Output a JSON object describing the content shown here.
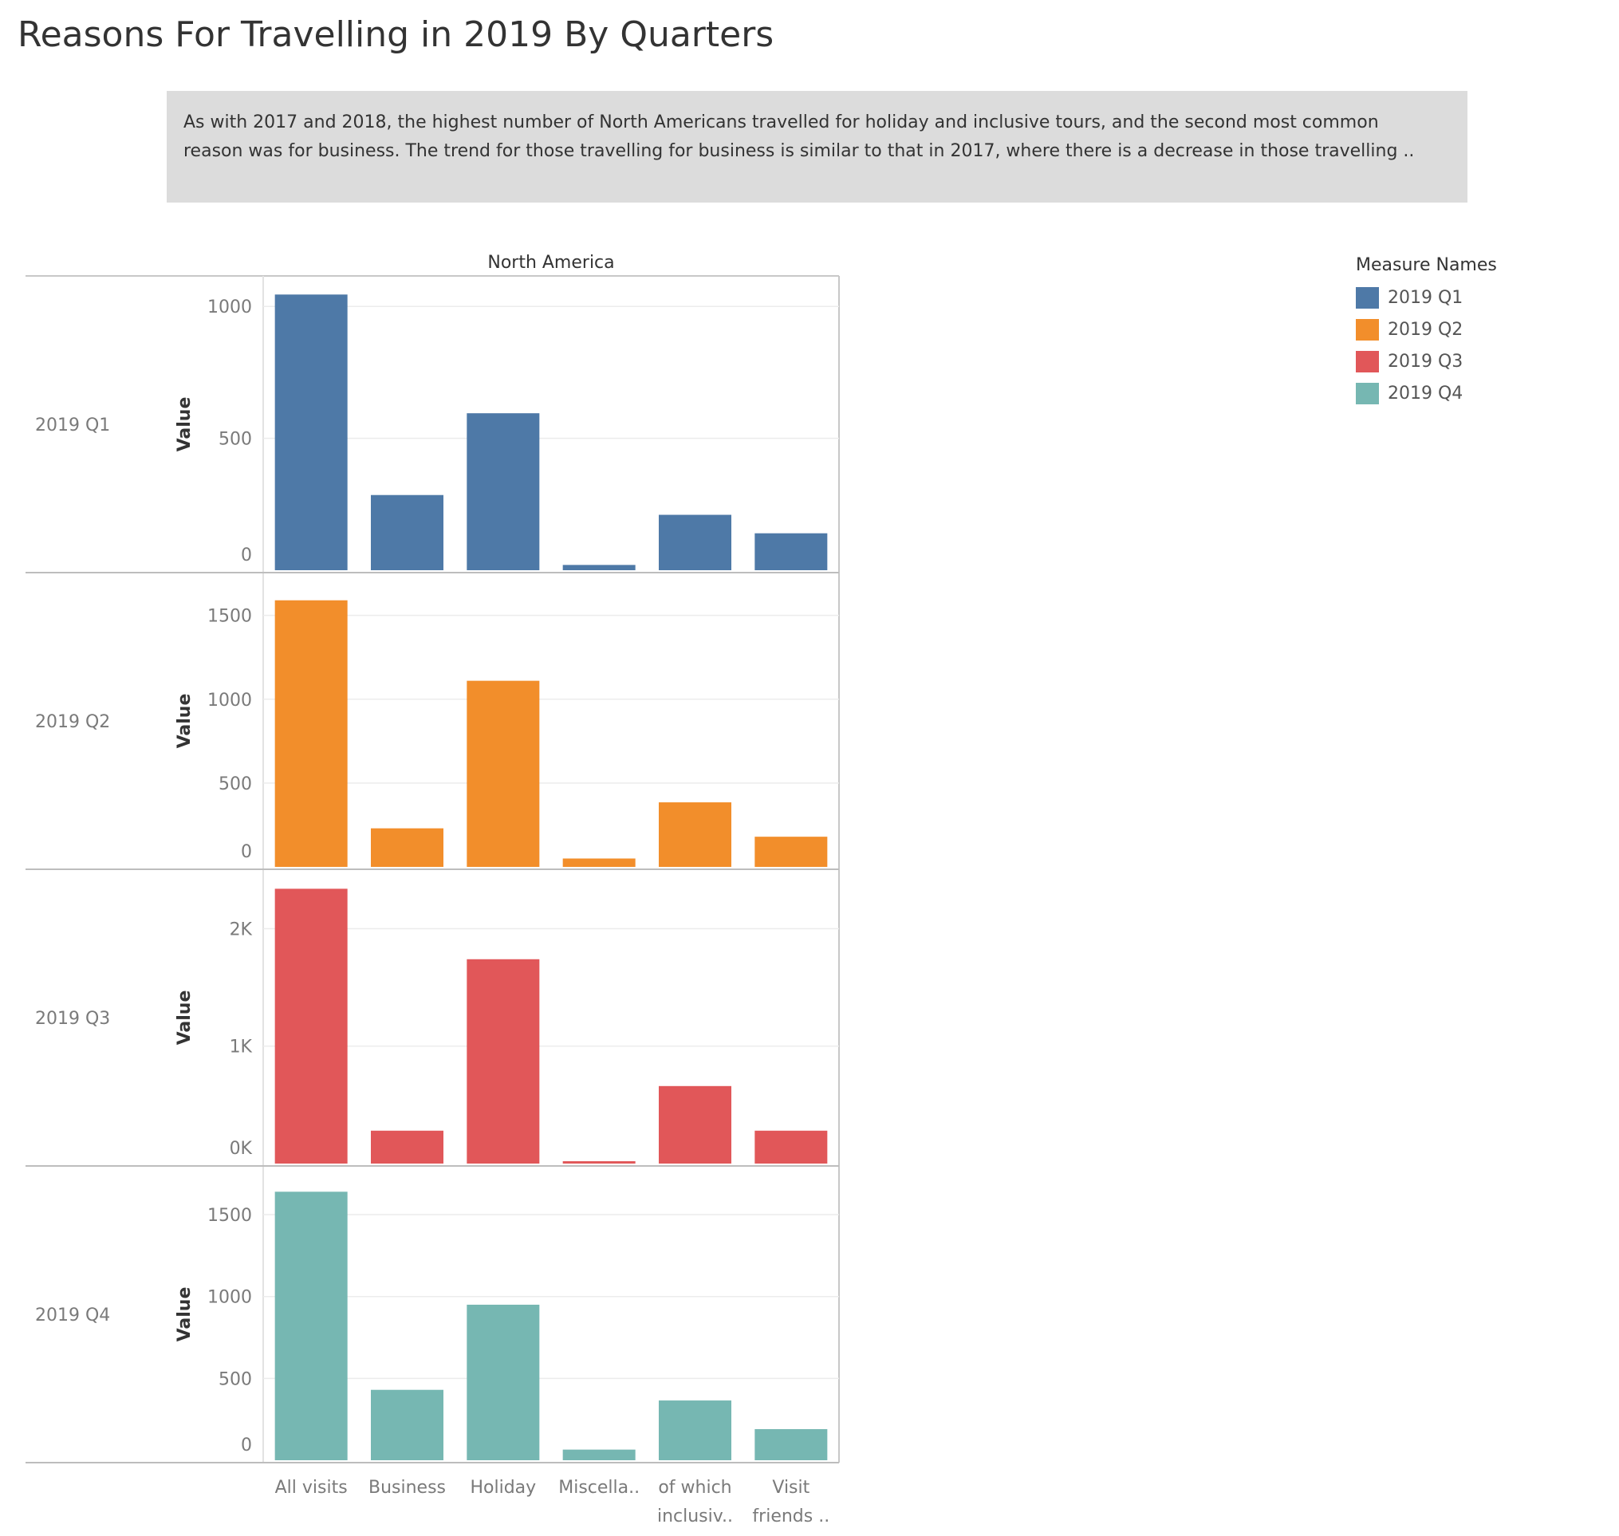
{
  "title": "Reasons For Travelling in 2019 By Quarters",
  "caption": {
    "line1": "As with 2017 and 2018, the highest number of North Americans travelled for holiday and inclusive tours, and the second most common",
    "line2": "reason was for business. The trend for those travelling for business is similar to that in 2017, where there is a decrease in those travelling .."
  },
  "legend": {
    "title": "Measure Names",
    "items": [
      {
        "label": "2019 Q1",
        "color": "#4e79a7"
      },
      {
        "label": "2019 Q2",
        "color": "#f28e2b"
      },
      {
        "label": "2019 Q3",
        "color": "#e15759"
      },
      {
        "label": "2019 Q4",
        "color": "#76b7b2"
      }
    ]
  },
  "chart_data": {
    "type": "bar",
    "column_header": "North America",
    "categories": [
      "All visits",
      "Business",
      "Holiday",
      "Miscella..",
      "of which inclusiv..",
      "Visit friends .."
    ],
    "category_labels": [
      [
        "All visits"
      ],
      [
        "Business"
      ],
      [
        "Holiday"
      ],
      [
        "Miscella.."
      ],
      [
        "of which",
        "inclusiv.."
      ],
      [
        "Visit",
        "friends .."
      ]
    ],
    "ylabel": "Value",
    "grid": true,
    "legend_position": "top-right",
    "panels": [
      {
        "row_label": "2019 Q1",
        "color": "#4e79a7",
        "ylim": [
          0,
          1055
        ],
        "ticks": [
          {
            "v": 0,
            "t": "0"
          },
          {
            "v": 500,
            "t": "500"
          },
          {
            "v": 1000,
            "t": "1000"
          }
        ],
        "values": [
          1045,
          285,
          595,
          20,
          210,
          140
        ]
      },
      {
        "row_label": "2019 Q2",
        "color": "#f28e2b",
        "ylim": [
          0,
          1660
        ],
        "ticks": [
          {
            "v": 0,
            "t": "0"
          },
          {
            "v": 500,
            "t": "500"
          },
          {
            "v": 1000,
            "t": "1000"
          },
          {
            "v": 1500,
            "t": "1500"
          }
        ],
        "values": [
          1590,
          230,
          1110,
          50,
          385,
          180
        ]
      },
      {
        "row_label": "2019 Q3",
        "color": "#e15759",
        "ylim": [
          0,
          2370
        ],
        "ticks": [
          {
            "v": 0,
            "t": "0K"
          },
          {
            "v": 1000,
            "t": "1K"
          },
          {
            "v": 2000,
            "t": "2K"
          }
        ],
        "values": [
          2340,
          280,
          1740,
          20,
          660,
          280
        ]
      },
      {
        "row_label": "2019 Q4",
        "color": "#76b7b2",
        "ylim": [
          0,
          1700
        ],
        "ticks": [
          {
            "v": 0,
            "t": "0"
          },
          {
            "v": 500,
            "t": "500"
          },
          {
            "v": 1000,
            "t": "1000"
          },
          {
            "v": 1500,
            "t": "1500"
          }
        ],
        "values": [
          1640,
          430,
          950,
          65,
          365,
          190
        ]
      }
    ]
  }
}
